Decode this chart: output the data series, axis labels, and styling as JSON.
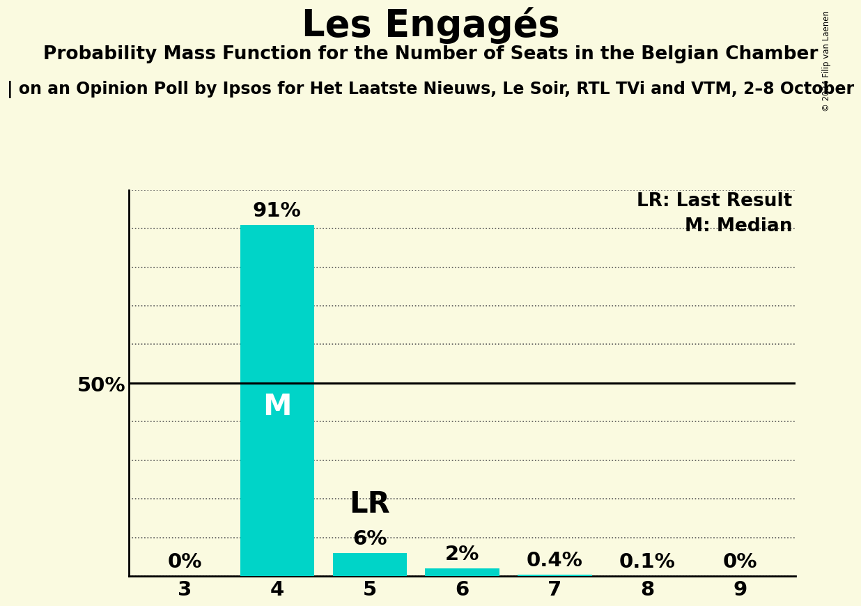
{
  "title": "Les Engagés",
  "subtitle": "Probability Mass Function for the Number of Seats in the Belgian Chamber",
  "sub2": "| on an Opinion Poll by Ipsos for Het Laatste Nieuws, Le Soir, RTL TVi and VTM, 2–8 October",
  "copyright": "© 2024 Filip van Laenen",
  "categories": [
    3,
    4,
    5,
    6,
    7,
    8,
    9
  ],
  "values": [
    0.0,
    0.91,
    0.06,
    0.02,
    0.004,
    0.001,
    0.0
  ],
  "labels": [
    "0%",
    "91%",
    "6%",
    "2%",
    "0.4%",
    "0.1%",
    "0%"
  ],
  "bar_color": "#00D4C8",
  "background_color": "#FAFAE0",
  "median_bar": 4,
  "lr_bar": 5,
  "ylim": [
    0,
    1.0
  ],
  "yticks": [
    0.0,
    0.1,
    0.2,
    0.3,
    0.4,
    0.5,
    0.6,
    0.7,
    0.8,
    0.9,
    1.0
  ],
  "ytick_labels": [
    "",
    "",
    "",
    "",
    "",
    "50%",
    "",
    "",
    "",
    "",
    ""
  ],
  "grid_color": "#555555",
  "title_fontsize": 38,
  "subtitle_fontsize": 19,
  "sub2_fontsize": 17,
  "bar_label_fontsize": 21,
  "axis_tick_fontsize": 21,
  "legend_fontsize": 19,
  "median_label_fontsize": 30
}
